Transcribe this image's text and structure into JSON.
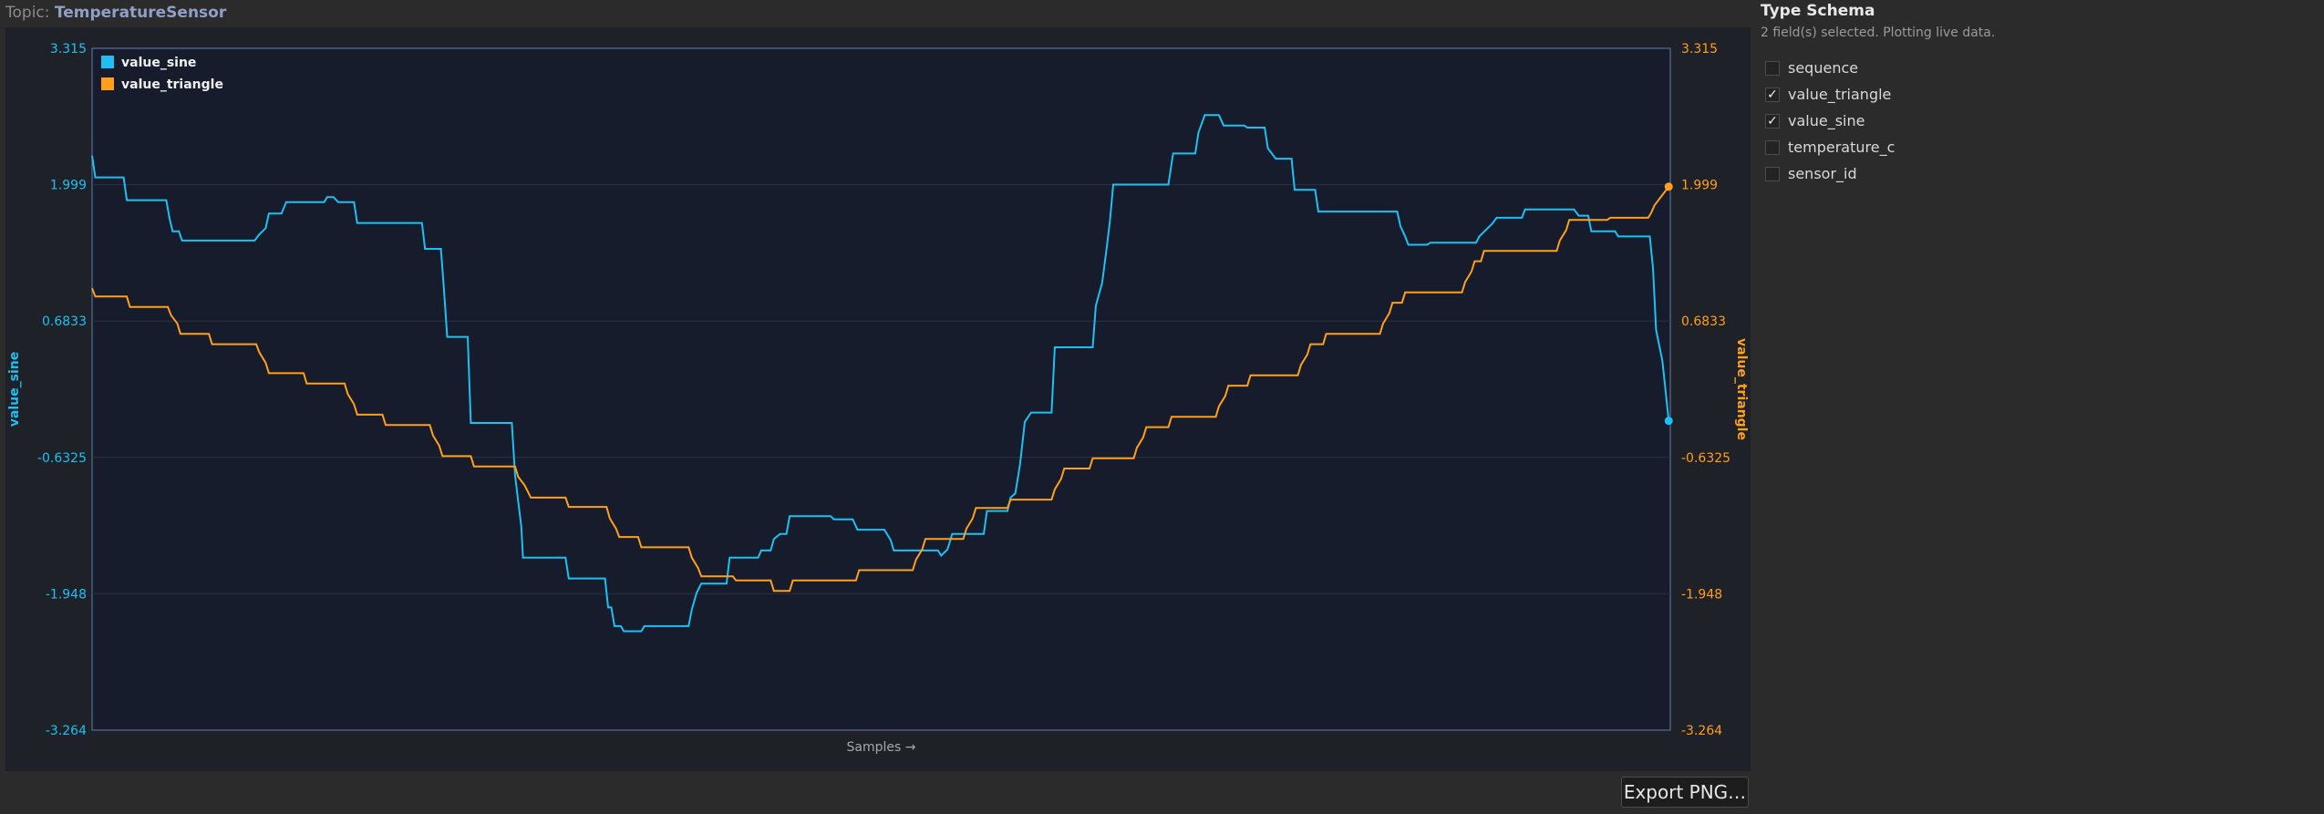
{
  "topic": {
    "prefix": "Topic:",
    "name": "TemperatureSensor"
  },
  "export_label": "Export PNG…",
  "side": {
    "title": "Type Schema",
    "subtitle": "2 field(s) selected. Plotting live data.",
    "fields": [
      {
        "label": "sequence",
        "checked": false,
        "mark": ""
      },
      {
        "label": "value_triangle",
        "checked": true,
        "mark": "✓"
      },
      {
        "label": "value_sine",
        "checked": true,
        "mark": "✓"
      },
      {
        "label": "temperature_c",
        "checked": false,
        "mark": ""
      },
      {
        "label": "sensor_id",
        "checked": false,
        "mark": ""
      }
    ]
  },
  "colors": {
    "sine": "#1ec0f2",
    "triangle": "#ff9f1a",
    "plot_bg": "#171c2c",
    "frame_bg": "#1e2128",
    "axis": "#5a6d96"
  },
  "chart_data": {
    "type": "line",
    "xlabel": "Samples →",
    "ylabel_left": "value_sine",
    "ylabel_right": "value_triangle",
    "ylim": [
      -3.264,
      3.315
    ],
    "y_ticks": [
      "3.315",
      "1.999",
      "0.6833",
      "-0.6325",
      "-1.948",
      "-3.264"
    ],
    "legend": [
      "value_sine",
      "value_triangle"
    ],
    "legend_position": "top-left",
    "x_range": [
      0,
      1000
    ],
    "series": [
      {
        "name": "value_sine",
        "color": "#1ec0f2",
        "axis": "left",
        "points": [
          [
            0,
            2.28
          ],
          [
            2,
            2.07
          ],
          [
            20,
            2.07
          ],
          [
            22,
            1.85
          ],
          [
            47,
            1.85
          ],
          [
            49,
            1.68
          ],
          [
            51,
            1.55
          ],
          [
            55,
            1.55
          ],
          [
            57,
            1.46
          ],
          [
            103,
            1.46
          ],
          [
            106,
            1.52
          ],
          [
            110,
            1.58
          ],
          [
            112,
            1.72
          ],
          [
            120,
            1.72
          ],
          [
            123,
            1.83
          ],
          [
            147,
            1.83
          ],
          [
            149,
            1.88
          ],
          [
            153,
            1.88
          ],
          [
            156,
            1.83
          ],
          [
            166,
            1.83
          ],
          [
            168,
            1.63
          ],
          [
            209,
            1.63
          ],
          [
            211,
            1.38
          ],
          [
            221,
            1.38
          ],
          [
            223,
            0.98
          ],
          [
            225,
            0.53
          ],
          [
            238,
            0.53
          ],
          [
            240,
            -0.3
          ],
          [
            266,
            -0.3
          ],
          [
            268,
            -0.8
          ],
          [
            270,
            -1.06
          ],
          [
            272,
            -1.3
          ],
          [
            273,
            -1.6
          ],
          [
            300,
            -1.6
          ],
          [
            302,
            -1.8
          ],
          [
            325,
            -1.8
          ],
          [
            327,
            -2.08
          ],
          [
            329,
            -2.08
          ],
          [
            331,
            -2.26
          ],
          [
            335,
            -2.26
          ],
          [
            337,
            -2.31
          ],
          [
            348,
            -2.31
          ],
          [
            350,
            -2.26
          ],
          [
            378,
            -2.26
          ],
          [
            380,
            -2.1
          ],
          [
            383,
            -1.94
          ],
          [
            386,
            -1.85
          ],
          [
            402,
            -1.85
          ],
          [
            404,
            -1.6
          ],
          [
            422,
            -1.6
          ],
          [
            424,
            -1.53
          ],
          [
            430,
            -1.53
          ],
          [
            432,
            -1.42
          ],
          [
            436,
            -1.37
          ],
          [
            440,
            -1.37
          ],
          [
            442,
            -1.2
          ],
          [
            468,
            -1.2
          ],
          [
            470,
            -1.23
          ],
          [
            482,
            -1.23
          ],
          [
            485,
            -1.33
          ],
          [
            502,
            -1.33
          ],
          [
            506,
            -1.43
          ],
          [
            508,
            -1.53
          ],
          [
            536,
            -1.53
          ],
          [
            538,
            -1.58
          ],
          [
            542,
            -1.52
          ],
          [
            545,
            -1.37
          ],
          [
            565,
            -1.37
          ],
          [
            567,
            -1.15
          ],
          [
            580,
            -1.15
          ],
          [
            582,
            -1.02
          ],
          [
            585,
            -0.98
          ],
          [
            588,
            -0.7
          ],
          [
            591,
            -0.29
          ],
          [
            595,
            -0.2
          ],
          [
            608,
            -0.2
          ],
          [
            610,
            0.43
          ],
          [
            634,
            0.43
          ],
          [
            636,
            0.83
          ],
          [
            640,
            1.05
          ],
          [
            643,
            1.4
          ],
          [
            645,
            1.66
          ],
          [
            647,
            2.0
          ],
          [
            682,
            2.0
          ],
          [
            685,
            2.3
          ],
          [
            699,
            2.3
          ],
          [
            701,
            2.5
          ],
          [
            705,
            2.67
          ],
          [
            714,
            2.67
          ],
          [
            717,
            2.57
          ],
          [
            730,
            2.57
          ],
          [
            732,
            2.55
          ],
          [
            743,
            2.55
          ],
          [
            745,
            2.35
          ],
          [
            750,
            2.25
          ],
          [
            760,
            2.25
          ],
          [
            762,
            1.95
          ],
          [
            775,
            1.95
          ],
          [
            777,
            1.74
          ],
          [
            827,
            1.74
          ],
          [
            829,
            1.6
          ],
          [
            832,
            1.5
          ],
          [
            834,
            1.42
          ],
          [
            846,
            1.42
          ],
          [
            848,
            1.44
          ],
          [
            877,
            1.44
          ],
          [
            879,
            1.5
          ],
          [
            887,
            1.62
          ],
          [
            890,
            1.68
          ],
          [
            906,
            1.68
          ],
          [
            908,
            1.76
          ],
          [
            939,
            1.76
          ],
          [
            942,
            1.7
          ],
          [
            948,
            1.7
          ],
          [
            950,
            1.55
          ],
          [
            965,
            1.55
          ],
          [
            967,
            1.5
          ],
          [
            987,
            1.5
          ],
          [
            989,
            1.2
          ],
          [
            991,
            0.6
          ],
          [
            995,
            0.3
          ],
          [
            999,
            -0.28
          ]
        ]
      },
      {
        "name": "value_triangle",
        "color": "#ff9f1a",
        "axis": "right",
        "points": [
          [
            0,
            1.0
          ],
          [
            2,
            0.92
          ],
          [
            22,
            0.92
          ],
          [
            24,
            0.82
          ],
          [
            48,
            0.82
          ],
          [
            50,
            0.74
          ],
          [
            54,
            0.66
          ],
          [
            56,
            0.56
          ],
          [
            74,
            0.56
          ],
          [
            76,
            0.46
          ],
          [
            104,
            0.46
          ],
          [
            106,
            0.38
          ],
          [
            110,
            0.28
          ],
          [
            112,
            0.18
          ],
          [
            134,
            0.18
          ],
          [
            136,
            0.08
          ],
          [
            160,
            0.08
          ],
          [
            162,
            -0.02
          ],
          [
            166,
            -0.12
          ],
          [
            168,
            -0.22
          ],
          [
            184,
            -0.22
          ],
          [
            186,
            -0.32
          ],
          [
            214,
            -0.32
          ],
          [
            216,
            -0.42
          ],
          [
            220,
            -0.52
          ],
          [
            222,
            -0.62
          ],
          [
            240,
            -0.62
          ],
          [
            242,
            -0.72
          ],
          [
            268,
            -0.72
          ],
          [
            270,
            -0.82
          ],
          [
            274,
            -0.9
          ],
          [
            276,
            -0.96
          ],
          [
            278,
            -1.02
          ],
          [
            300,
            -1.02
          ],
          [
            302,
            -1.11
          ],
          [
            326,
            -1.11
          ],
          [
            328,
            -1.22
          ],
          [
            332,
            -1.32
          ],
          [
            334,
            -1.4
          ],
          [
            346,
            -1.4
          ],
          [
            348,
            -1.5
          ],
          [
            378,
            -1.5
          ],
          [
            380,
            -1.6
          ],
          [
            384,
            -1.7
          ],
          [
            386,
            -1.78
          ],
          [
            406,
            -1.78
          ],
          [
            408,
            -1.82
          ],
          [
            430,
            -1.82
          ],
          [
            432,
            -1.92
          ],
          [
            442,
            -1.92
          ],
          [
            444,
            -1.82
          ],
          [
            484,
            -1.82
          ],
          [
            486,
            -1.72
          ],
          [
            520,
            -1.72
          ],
          [
            522,
            -1.62
          ],
          [
            526,
            -1.52
          ],
          [
            528,
            -1.42
          ],
          [
            552,
            -1.42
          ],
          [
            554,
            -1.32
          ],
          [
            558,
            -1.22
          ],
          [
            560,
            -1.12
          ],
          [
            580,
            -1.12
          ],
          [
            582,
            -1.04
          ],
          [
            608,
            -1.04
          ],
          [
            610,
            -0.94
          ],
          [
            614,
            -0.84
          ],
          [
            616,
            -0.74
          ],
          [
            632,
            -0.74
          ],
          [
            634,
            -0.64
          ],
          [
            660,
            -0.64
          ],
          [
            662,
            -0.54
          ],
          [
            666,
            -0.44
          ],
          [
            668,
            -0.34
          ],
          [
            682,
            -0.34
          ],
          [
            684,
            -0.24
          ],
          [
            712,
            -0.24
          ],
          [
            714,
            -0.14
          ],
          [
            718,
            -0.04
          ],
          [
            720,
            0.06
          ],
          [
            732,
            0.06
          ],
          [
            734,
            0.16
          ],
          [
            764,
            0.16
          ],
          [
            766,
            0.26
          ],
          [
            770,
            0.36
          ],
          [
            772,
            0.46
          ],
          [
            780,
            0.46
          ],
          [
            782,
            0.56
          ],
          [
            816,
            0.56
          ],
          [
            818,
            0.66
          ],
          [
            822,
            0.76
          ],
          [
            824,
            0.86
          ],
          [
            830,
            0.86
          ],
          [
            832,
            0.96
          ],
          [
            868,
            0.96
          ],
          [
            870,
            1.06
          ],
          [
            874,
            1.16
          ],
          [
            876,
            1.26
          ],
          [
            880,
            1.26
          ],
          [
            882,
            1.36
          ],
          [
            928,
            1.36
          ],
          [
            930,
            1.46
          ],
          [
            934,
            1.56
          ],
          [
            936,
            1.66
          ],
          [
            960,
            1.66
          ],
          [
            962,
            1.68
          ],
          [
            986,
            1.68
          ],
          [
            988,
            1.73
          ],
          [
            990,
            1.8
          ],
          [
            993,
            1.86
          ],
          [
            996,
            1.92
          ],
          [
            999,
            1.98
          ]
        ]
      }
    ]
  }
}
